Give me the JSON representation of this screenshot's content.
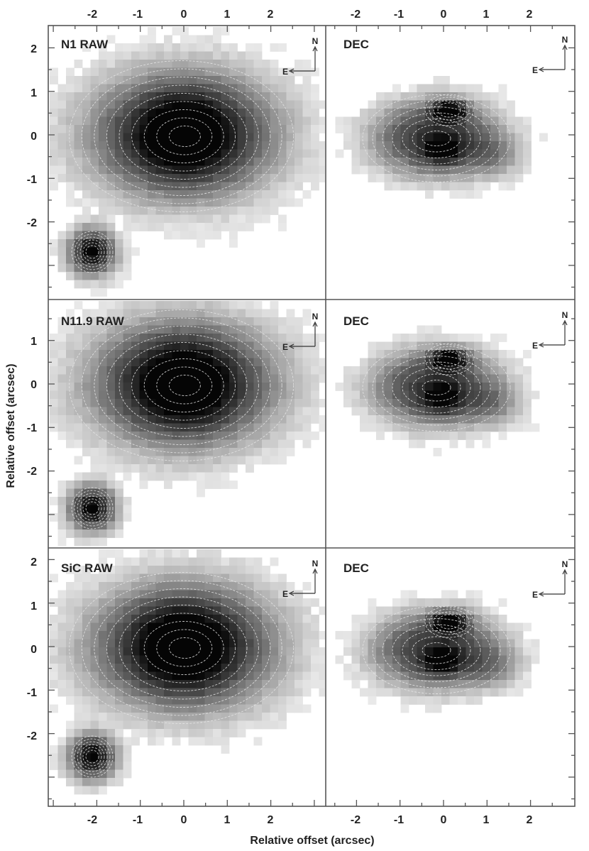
{
  "figure": {
    "xlabel": "Relative offset (arcsec)",
    "ylabel": "Relative offset (arcsec)",
    "x_ticks": [
      "-2",
      "-1",
      "0",
      "1",
      "2"
    ],
    "x_ticks_top_left": [
      "-2",
      "-1",
      "0",
      "1",
      "2"
    ],
    "x_ticks_top_right": [
      "-2",
      "-1",
      "0",
      "1",
      "2"
    ],
    "compass": {
      "north": "N",
      "east": "E"
    },
    "rows": [
      {
        "y_ticks": [
          "2",
          "1",
          "0",
          "-1",
          "-2"
        ],
        "left": {
          "title": "N1 RAW"
        },
        "right": {
          "title": "DEC"
        }
      },
      {
        "y_ticks": [
          "1",
          "0",
          "-1",
          "-2"
        ],
        "left": {
          "title": "N11.9 RAW"
        },
        "right": {
          "title": "DEC"
        }
      },
      {
        "y_ticks": [
          "2",
          "1",
          "0",
          "-1",
          "-2"
        ],
        "left": {
          "title": "SiC RAW"
        },
        "right": {
          "title": "DEC"
        }
      }
    ]
  }
}
